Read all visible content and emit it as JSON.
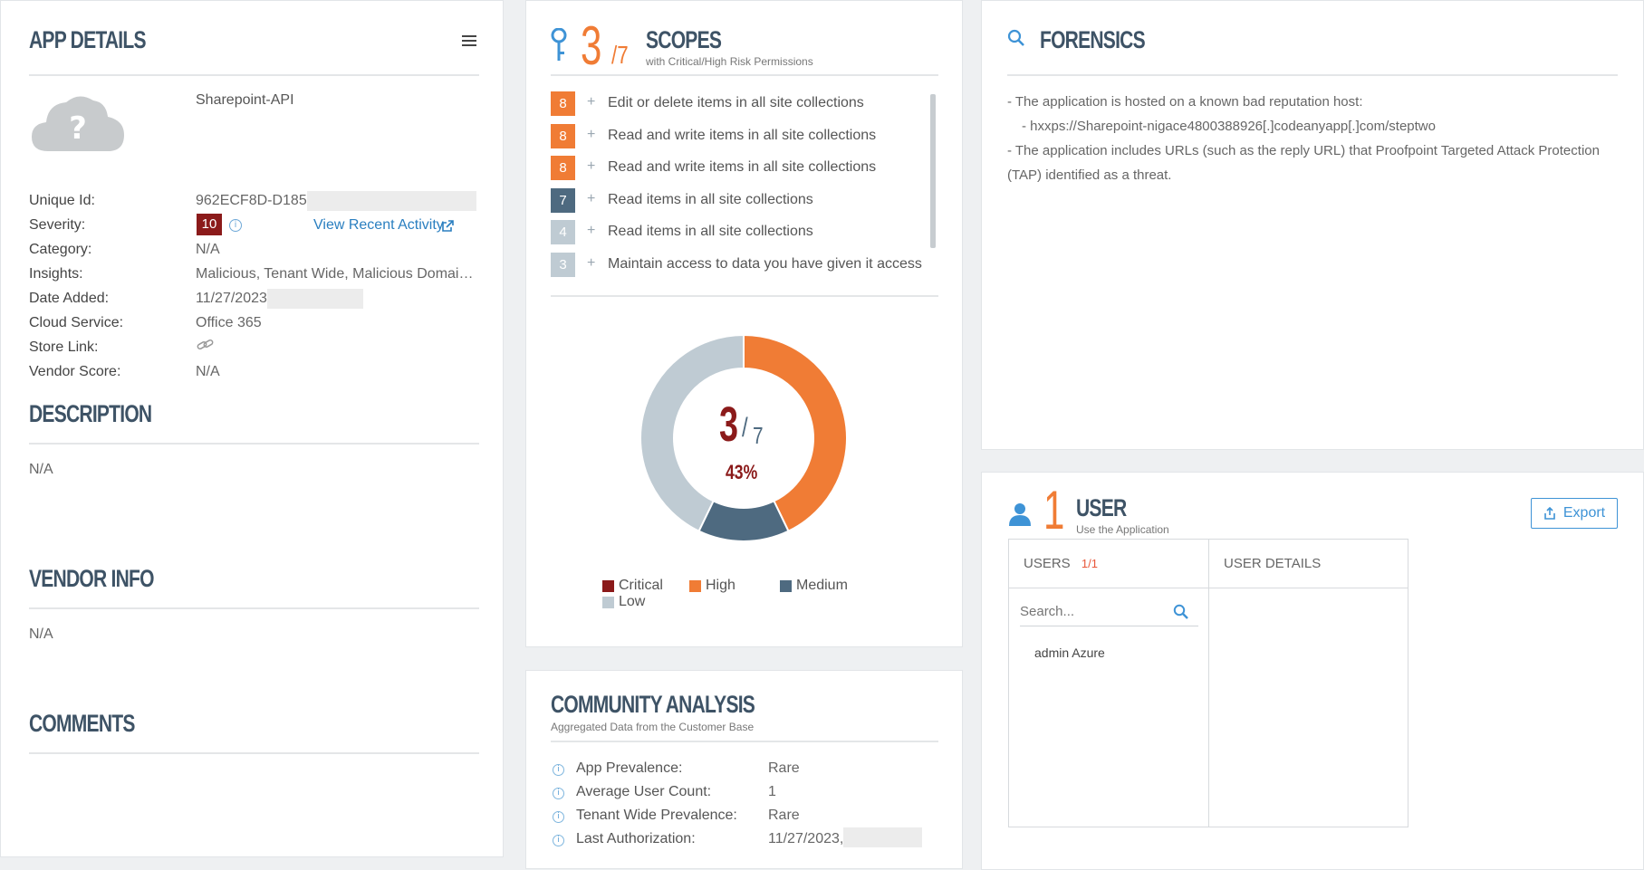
{
  "app_details": {
    "title": "APP DETAILS",
    "app_name": "Sharepoint-API",
    "fields": {
      "unique_id_label": "Unique Id:",
      "unique_id_value": "962ECF8D-D185-",
      "severity_label": "Severity:",
      "severity_value": "10",
      "view_recent_activity": "View Recent Activity",
      "category_label": "Category:",
      "category_value": "N/A",
      "insights_label": "Insights:",
      "insights_value": "Malicious, Tenant Wide, Malicious Domai…",
      "date_added_label": "Date Added:",
      "date_added_value": "11/27/2023",
      "cloud_service_label": "Cloud Service:",
      "cloud_service_value": "Office 365",
      "store_link_label": "Store Link:",
      "vendor_score_label": "Vendor Score:",
      "vendor_score_value": "N/A"
    },
    "description_title": "DESCRIPTION",
    "description_value": "N/A",
    "vendor_info_title": "VENDOR INFO",
    "vendor_info_value": "N/A",
    "comments_title": "COMMENTS"
  },
  "scopes": {
    "count": "3",
    "total": "/7",
    "title": "SCOPES",
    "subtitle": "with Critical/High Risk Permissions",
    "items": [
      {
        "score": "8",
        "color": "#f07c35",
        "text": "Edit or delete items in all site collections"
      },
      {
        "score": "8",
        "color": "#f07c35",
        "text": "Read and write items in all site collections"
      },
      {
        "score": "8",
        "color": "#f07c35",
        "text": "Read and write items in all site collections"
      },
      {
        "score": "7",
        "color": "#4e6a80",
        "text": "Read items in all site collections"
      },
      {
        "score": "4",
        "color": "#bfcbd3",
        "text": "Read items in all site collections"
      },
      {
        "score": "3",
        "color": "#bfcbd3",
        "text": "Maintain access to data you have given it access to"
      }
    ],
    "donut": {
      "center_num": "3",
      "center_den": "7",
      "percent": "43%"
    },
    "legend": [
      {
        "label": "Critical",
        "color": "#8b1a1a"
      },
      {
        "label": "High",
        "color": "#f07c35"
      },
      {
        "label": "Medium",
        "color": "#4e6a80"
      },
      {
        "label": "Low",
        "color": "#bfcbd3"
      }
    ]
  },
  "chart_data": {
    "type": "pie",
    "categories": [
      "Critical",
      "High",
      "Medium",
      "Low"
    ],
    "values": [
      0,
      3,
      1,
      3
    ],
    "center_text": "3/7",
    "percent_label": "43%"
  },
  "community": {
    "title": "COMMUNITY ANALYSIS",
    "subtitle": "Aggregated Data from the Customer Base",
    "rows": [
      {
        "label": "App Prevalence:",
        "value": "Rare"
      },
      {
        "label": "Average User Count:",
        "value": "1"
      },
      {
        "label": "Tenant Wide Prevalence:",
        "value": "Rare"
      },
      {
        "label": "Last Authorization:",
        "value": "11/27/2023,"
      }
    ]
  },
  "forensics": {
    "title": "FORENSICS",
    "line1": "- The application is hosted on a known bad reputation host:",
    "line2": "- hxxps://Sharepoint-nigace4800388926[.]codeanyapp[.]com/steptwo",
    "line3": "- The application includes URLs (such as the reply URL) that Proofpoint Targeted Attack Protection",
    "line4": "(TAP) identified as a threat."
  },
  "user": {
    "count": "1",
    "title": "USER",
    "subtitle": "Use the Application",
    "export_label": "Export",
    "users_header": "USERS",
    "users_count": "1/1",
    "user_details_header": "USER DETAILS",
    "search_placeholder": "Search...",
    "user_name": "admin Azure"
  }
}
